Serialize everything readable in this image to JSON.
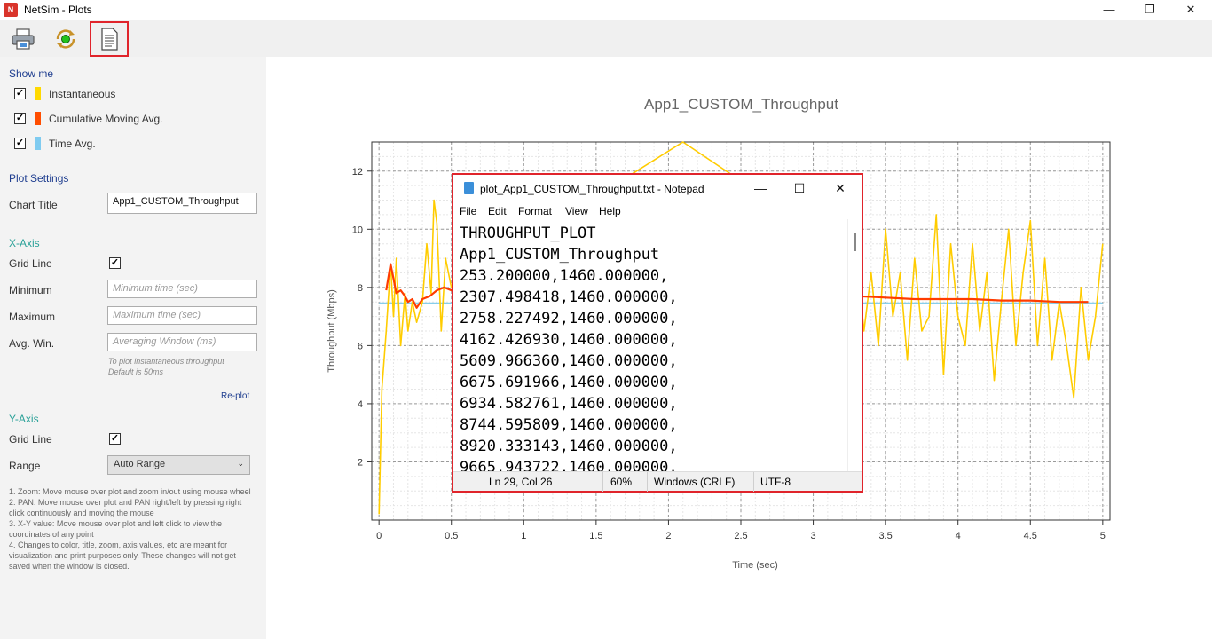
{
  "window": {
    "title": "NetSim - Plots",
    "app_icon_text": "N",
    "minimize": "—",
    "restore": "❐",
    "close": "✕"
  },
  "toolbar": {
    "buttons": [
      {
        "name": "print",
        "icon": "printer-icon"
      },
      {
        "name": "refresh",
        "icon": "refresh-icon"
      },
      {
        "name": "open-text-file",
        "icon": "document-icon"
      }
    ]
  },
  "sidebar": {
    "show_me": {
      "title": "Show me",
      "items": [
        {
          "label": "Instantaneous",
          "checked": true,
          "color": "#ffd900"
        },
        {
          "label": "Cumulative Moving Avg.",
          "checked": true,
          "color": "#ff4d00"
        },
        {
          "label": "Time Avg.",
          "checked": true,
          "color": "#7fcbf0"
        }
      ]
    },
    "plot_settings": {
      "title": "Plot Settings",
      "chart_title_label": "Chart Title",
      "chart_title_value": "App1_CUSTOM_Throughput"
    },
    "x_axis": {
      "title": "X-Axis",
      "grid_line_label": "Grid Line",
      "grid_line_checked": true,
      "minimum_label": "Minimum",
      "minimum_placeholder": "Minimum time (sec)",
      "maximum_label": "Maximum",
      "maximum_placeholder": "Maximum time (sec)",
      "avg_win_label": "Avg. Win.",
      "avg_win_placeholder": "Averaging Window (ms)",
      "hint_line1": "To plot instantaneous throughput",
      "hint_line2": "Default is 50ms",
      "replot_label": "Re-plot"
    },
    "y_axis": {
      "title": "Y-Axis",
      "grid_line_label": "Grid Line",
      "grid_line_checked": true,
      "range_label": "Range",
      "range_value": "Auto Range"
    },
    "notes": [
      "1. Zoom: Move mouse over plot and zoom in/out using mouse wheel",
      "2. PAN: Move mouse over plot and PAN right/left by pressing right click continuously and moving the mouse",
      "3. X-Y value: Move mouse over plot and left click to view the coordinates of any point",
      "4. Changes to color, title, zoom, axis values, etc are meant for visualization and print purposes only. These changes will not get saved when the window is closed."
    ]
  },
  "chart_data": {
    "type": "line",
    "title": "App1_CUSTOM_Throughput",
    "xlabel": "Time (sec)",
    "ylabel": "Throughput (Mbps)",
    "xlim": [
      -0.05,
      5.05
    ],
    "ylim": [
      0,
      13
    ],
    "xticks": [
      "0",
      "0.5",
      "1",
      "1.5",
      "2",
      "2.5",
      "3",
      "3.5",
      "4",
      "4.5",
      "5"
    ],
    "xtick_values": [
      0,
      0.5,
      1,
      1.5,
      2,
      2.5,
      3,
      3.5,
      4,
      4.5,
      5
    ],
    "yticks": [
      "2",
      "4",
      "6",
      "8",
      "10",
      "12"
    ],
    "ytick_values": [
      2,
      4,
      6,
      8,
      10,
      12
    ],
    "grid": true,
    "series": [
      {
        "name": "Instantaneous",
        "color": "#ffcc00",
        "x": [
          0,
          0.02,
          0.05,
          0.08,
          0.1,
          0.12,
          0.15,
          0.18,
          0.2,
          0.23,
          0.26,
          0.3,
          0.33,
          0.36,
          0.38,
          0.4,
          0.43,
          0.46,
          0.5,
          2.1,
          3.3,
          3.35,
          3.4,
          3.45,
          3.5,
          3.55,
          3.6,
          3.65,
          3.7,
          3.75,
          3.8,
          3.85,
          3.9,
          3.95,
          4.0,
          4.05,
          4.1,
          4.15,
          4.2,
          4.25,
          4.3,
          4.35,
          4.4,
          4.45,
          4.5,
          4.55,
          4.6,
          4.65,
          4.7,
          4.75,
          4.8,
          4.85,
          4.9,
          4.95,
          5.0
        ],
        "y": [
          0.2,
          4.5,
          6.5,
          8.8,
          7.0,
          9.0,
          6.0,
          7.8,
          6.5,
          7.5,
          6.8,
          7.5,
          9.5,
          7.8,
          11.0,
          10.2,
          6.5,
          9.0,
          8.0,
          13.0,
          9.0,
          6.5,
          8.5,
          6.0,
          10.0,
          7.0,
          8.5,
          5.5,
          9.0,
          6.5,
          7.0,
          10.5,
          5.0,
          9.5,
          7.0,
          6.0,
          9.5,
          6.5,
          8.5,
          4.8,
          7.5,
          10.0,
          6.0,
          8.5,
          10.3,
          6.0,
          9.0,
          5.5,
          7.5,
          6.0,
          4.2,
          8.0,
          5.5,
          7.0,
          9.5
        ]
      },
      {
        "name": "Cumulative Moving Avg.",
        "color": "#ff3c00",
        "x": [
          0.05,
          0.08,
          0.1,
          0.12,
          0.15,
          0.18,
          0.2,
          0.23,
          0.26,
          0.3,
          0.35,
          0.4,
          0.45,
          0.5,
          3.3,
          3.5,
          3.7,
          3.9,
          4.1,
          4.3,
          4.5,
          4.7,
          4.9
        ],
        "y": [
          7.9,
          8.8,
          8.3,
          7.8,
          7.9,
          7.7,
          7.5,
          7.6,
          7.3,
          7.6,
          7.7,
          7.9,
          8.0,
          7.9,
          7.7,
          7.65,
          7.6,
          7.6,
          7.6,
          7.55,
          7.55,
          7.5,
          7.5
        ]
      },
      {
        "name": "Time Avg.",
        "color": "#87ceeb",
        "x": [
          0,
          5.0
        ],
        "y": [
          7.45,
          7.45
        ]
      }
    ]
  },
  "notepad": {
    "title": "plot_App1_CUSTOM_Throughput.txt - Notepad",
    "minimize": "—",
    "maximize": "☐",
    "close": "✕",
    "menu": [
      "File",
      "Edit",
      "Format",
      "View",
      "Help"
    ],
    "lines": [
      "THROUGHPUT_PLOT",
      "App1_CUSTOM_Throughput",
      "253.200000,1460.000000,",
      "2307.498418,1460.000000,",
      "2758.227492,1460.000000,",
      "4162.426930,1460.000000,",
      "5609.966360,1460.000000,",
      "6675.691966,1460.000000,",
      "6934.582761,1460.000000,",
      "8744.595809,1460.000000,",
      "8920.333143,1460.000000,",
      "9665.943722,1460.000000,"
    ],
    "status": {
      "position": "Ln 29, Col 26",
      "zoom": "60%",
      "line_ending": "Windows (CRLF)",
      "encoding": "UTF-8"
    }
  }
}
